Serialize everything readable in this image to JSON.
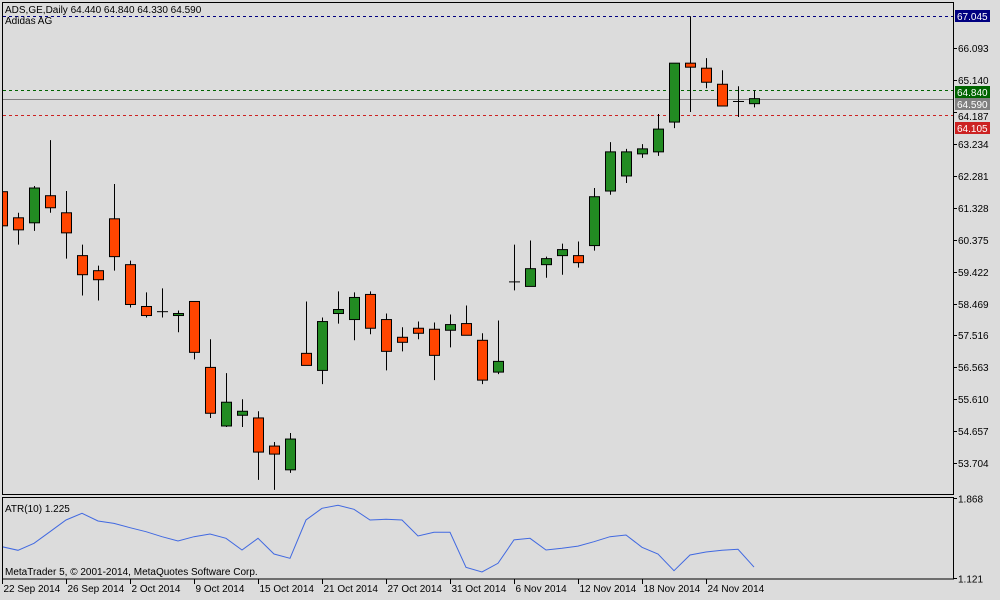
{
  "header": {
    "symbol_line": "ADS,GE,Daily  64.440 64.840 64.330 64.590",
    "instrument_name": "Adidas AG"
  },
  "footer": {
    "copyright": "MetaTrader 5, © 2001-2014, MetaQuotes Software Corp."
  },
  "colors": {
    "background": "#dcdcdc",
    "bull_candle": "#228b22",
    "bear_candle": "#ff4500",
    "atr_line": "#4169e1",
    "high_line": "#000080",
    "ask_line": "#006400",
    "bid_line": "#808080",
    "low_line": "#cc2222"
  },
  "chart_data": [
    {
      "type": "candlestick",
      "title": "ADS,GE,Daily",
      "subtitle": "Adidas AG",
      "ohlc_fields": [
        "open",
        "high",
        "low",
        "close"
      ],
      "candles": [
        [
          61.81,
          61.89,
          60.67,
          60.79
        ],
        [
          61.03,
          61.18,
          60.23,
          60.67
        ],
        [
          60.88,
          61.98,
          60.64,
          61.92
        ],
        [
          61.69,
          63.35,
          61.18,
          61.33
        ],
        [
          61.18,
          61.83,
          59.81,
          60.58
        ],
        [
          59.9,
          60.23,
          58.71,
          59.33
        ],
        [
          59.45,
          59.6,
          58.56,
          59.18
        ],
        [
          61.0,
          62.04,
          59.45,
          59.87
        ],
        [
          59.63,
          59.75,
          58.35,
          58.44
        ],
        [
          58.38,
          58.8,
          58.05,
          58.11
        ],
        [
          58.24,
          58.92,
          58.05,
          58.23
        ],
        [
          58.11,
          58.26,
          57.61,
          58.17
        ],
        [
          58.53,
          58.53,
          56.8,
          57.01
        ],
        [
          56.56,
          57.4,
          55.05,
          55.19
        ],
        [
          54.81,
          56.39,
          54.78,
          55.52
        ],
        [
          55.13,
          55.61,
          54.78,
          55.25
        ],
        [
          55.05,
          55.25,
          53.2,
          54.03
        ],
        [
          54.21,
          54.33,
          52.9,
          53.97
        ],
        [
          53.5,
          54.6,
          53.41,
          54.42
        ],
        [
          56.98,
          58.53,
          56.62,
          56.62
        ],
        [
          56.47,
          58.05,
          56.06,
          57.93
        ],
        [
          58.17,
          58.83,
          57.87,
          58.29
        ],
        [
          57.99,
          58.8,
          57.37,
          58.65
        ],
        [
          58.74,
          58.83,
          57.55,
          57.73
        ],
        [
          57.99,
          58.17,
          56.47,
          57.04
        ],
        [
          57.46,
          57.76,
          57.04,
          57.31
        ],
        [
          57.73,
          57.93,
          57.4,
          57.58
        ],
        [
          57.7,
          57.9,
          56.18,
          56.92
        ],
        [
          57.67,
          58.14,
          57.16,
          57.84
        ],
        [
          57.87,
          58.41,
          57.52,
          57.52
        ],
        [
          57.37,
          57.58,
          56.06,
          56.18
        ],
        [
          56.42,
          57.96,
          56.36,
          56.74
        ],
        [
          59.12,
          60.23,
          58.86,
          59.13
        ],
        [
          58.98,
          60.35,
          58.98,
          59.51
        ],
        [
          59.63,
          59.87,
          59.24,
          59.81
        ],
        [
          59.9,
          60.26,
          59.33,
          60.08
        ],
        [
          59.9,
          60.32,
          59.54,
          59.69
        ],
        [
          60.2,
          61.92,
          60.05,
          61.66
        ],
        [
          61.83,
          63.29,
          61.72,
          63.0
        ],
        [
          62.28,
          63.09,
          62.07,
          63.0
        ],
        [
          62.94,
          63.23,
          62.82,
          63.09
        ],
        [
          63.0,
          64.13,
          62.88,
          63.68
        ],
        [
          63.89,
          65.65,
          63.71,
          65.65
        ],
        [
          65.65,
          67.05,
          64.19,
          65.53
        ],
        [
          65.5,
          65.8,
          64.9,
          65.08
        ],
        [
          65.02,
          65.44,
          64.37,
          64.37
        ],
        [
          64.52,
          64.96,
          64.04,
          64.51
        ],
        [
          64.44,
          64.84,
          64.33,
          64.59
        ]
      ],
      "y_ticks": [
        "66.093",
        "65.140",
        "64.187",
        "63.234",
        "62.281",
        "61.328",
        "60.375",
        "59.422",
        "58.469",
        "57.516",
        "56.563",
        "55.610",
        "54.657",
        "53.704"
      ],
      "ylim": [
        52.85,
        67.52
      ],
      "price_lines": [
        {
          "value": 67.045,
          "label": "67.045",
          "style": "dashed",
          "color": "#000080"
        },
        {
          "value": 64.84,
          "label": "64.840",
          "style": "dashed",
          "color": "#006400"
        },
        {
          "value": 64.59,
          "label": "64.590",
          "style": "solid",
          "color": "#808080"
        },
        {
          "value": 64.105,
          "label": "64.105",
          "style": "dashed",
          "color": "#cc2222"
        }
      ],
      "grid": false
    },
    {
      "type": "line",
      "title": "ATR(10) 1.225",
      "values": [
        1.416,
        1.382,
        1.448,
        1.556,
        1.665,
        1.728,
        1.656,
        1.634,
        1.593,
        1.556,
        1.509,
        1.469,
        1.509,
        1.535,
        1.494,
        1.385,
        1.494,
        1.348,
        1.308,
        1.665,
        1.775,
        1.803,
        1.765,
        1.665,
        1.672,
        1.665,
        1.516,
        1.55,
        1.55,
        1.224,
        1.18,
        1.261,
        1.479,
        1.494,
        1.385,
        1.401,
        1.422,
        1.463,
        1.509,
        1.525,
        1.41,
        1.348,
        1.192,
        1.338,
        1.366,
        1.382,
        1.392,
        1.225
      ],
      "y_ticks": [
        "1.868",
        "1.121"
      ],
      "ylim": [
        1.121,
        1.868
      ],
      "grid": false
    }
  ],
  "x_axis": {
    "labels": [
      {
        "label": "22 Sep 2014",
        "bar": 0
      },
      {
        "label": "26 Sep 2014",
        "bar": 4
      },
      {
        "label": "2 Oct 2014",
        "bar": 8
      },
      {
        "label": "9 Oct 2014",
        "bar": 12
      },
      {
        "label": "15 Oct 2014",
        "bar": 16
      },
      {
        "label": "21 Oct 2014",
        "bar": 20
      },
      {
        "label": "27 Oct 2014",
        "bar": 24
      },
      {
        "label": "31 Oct 2014",
        "bar": 28
      },
      {
        "label": "6 Nov 2014",
        "bar": 32
      },
      {
        "label": "12 Nov 2014",
        "bar": 36
      },
      {
        "label": "18 Nov 2014",
        "bar": 40
      },
      {
        "label": "24 Nov 2014",
        "bar": 44
      }
    ]
  }
}
